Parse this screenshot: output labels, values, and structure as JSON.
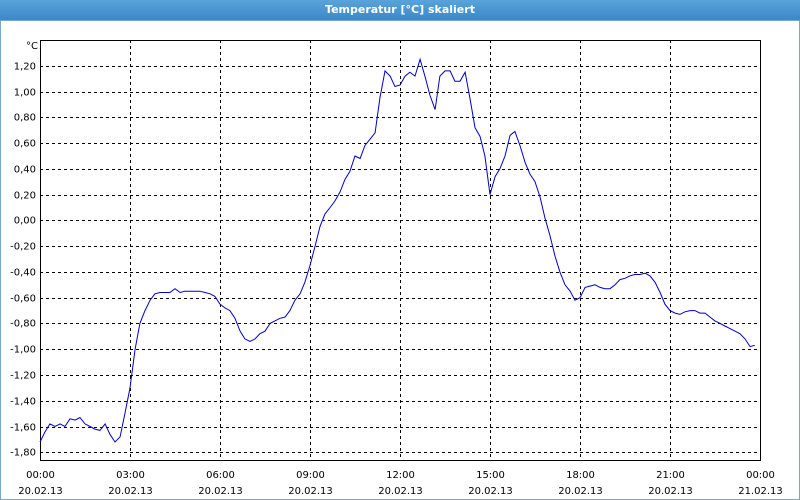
{
  "window_title": "Temperatur [°C] skaliert",
  "chart_data": {
    "type": "line",
    "y_unit": "°C",
    "xlim": [
      0,
      24
    ],
    "xticks": [
      {
        "value": 0,
        "label": "00:00"
      },
      {
        "value": 3,
        "label": "03:00"
      },
      {
        "value": 6,
        "label": "06:00"
      },
      {
        "value": 9,
        "label": "09:00"
      },
      {
        "value": 12,
        "label": "12:00"
      },
      {
        "value": 15,
        "label": "15:00"
      },
      {
        "value": 18,
        "label": "18:00"
      },
      {
        "value": 21,
        "label": "21:00"
      },
      {
        "value": 24,
        "label": "00:00"
      }
    ],
    "xtick_dates": [
      "20.02.13",
      "20.02.13",
      "20.02.13",
      "20.02.13",
      "20.02.13",
      "20.02.13",
      "20.02.13",
      "20.02.13",
      "21.02.13"
    ],
    "ylim": [
      -1.86,
      1.4
    ],
    "yticks": [
      {
        "value": -1.8,
        "label": "-1,80"
      },
      {
        "value": -1.6,
        "label": "-1,60"
      },
      {
        "value": -1.4,
        "label": "-1,40"
      },
      {
        "value": -1.2,
        "label": "-1,20"
      },
      {
        "value": -1.0,
        "label": "-1,00"
      },
      {
        "value": -0.8,
        "label": "-0,80"
      },
      {
        "value": -0.6,
        "label": "-0,60"
      },
      {
        "value": -0.4,
        "label": "-0,40"
      },
      {
        "value": -0.2,
        "label": "-0,20"
      },
      {
        "value": 0,
        "label": "0,00"
      },
      {
        "value": 0.2,
        "label": "0,20"
      },
      {
        "value": 0.4,
        "label": "0,40"
      },
      {
        "value": 0.6,
        "label": "0,60"
      },
      {
        "value": 0.8,
        "label": "0,80"
      },
      {
        "value": 1.0,
        "label": "1,00"
      },
      {
        "value": 1.2,
        "label": "1,20"
      }
    ],
    "grid": true,
    "series": [
      {
        "color": "#0000c8",
        "x": [
          0,
          0.17,
          0.33,
          0.5,
          0.67,
          0.83,
          1,
          1.17,
          1.33,
          1.5,
          1.67,
          1.83,
          2,
          2.17,
          2.33,
          2.5,
          2.67,
          2.83,
          3,
          3.17,
          3.33,
          3.5,
          3.67,
          3.83,
          4,
          4.17,
          4.33,
          4.5,
          4.67,
          4.83,
          5,
          5.17,
          5.33,
          5.5,
          5.67,
          5.83,
          6,
          6.17,
          6.33,
          6.5,
          6.67,
          6.83,
          7,
          7.17,
          7.33,
          7.5,
          7.67,
          7.83,
          8,
          8.17,
          8.33,
          8.5,
          8.67,
          8.83,
          9,
          9.17,
          9.33,
          9.5,
          9.67,
          9.83,
          10,
          10.17,
          10.33,
          10.5,
          10.67,
          10.83,
          11,
          11.17,
          11.33,
          11.5,
          11.67,
          11.83,
          12,
          12.17,
          12.33,
          12.5,
          12.67,
          12.83,
          13,
          13.17,
          13.33,
          13.5,
          13.67,
          13.83,
          14,
          14.17,
          14.33,
          14.5,
          14.67,
          14.83,
          15,
          15.17,
          15.33,
          15.5,
          15.67,
          15.83,
          16,
          16.17,
          16.33,
          16.5,
          16.67,
          16.83,
          17,
          17.17,
          17.33,
          17.5,
          17.67,
          17.83,
          18,
          18.17,
          18.33,
          18.5,
          18.67,
          18.83,
          19,
          19.17,
          19.33,
          19.5,
          19.67,
          19.83,
          20,
          20.17,
          20.33,
          20.5,
          20.67,
          20.83,
          21,
          21.17,
          21.33,
          21.5,
          21.67,
          21.83,
          22,
          22.17,
          22.33,
          22.5,
          22.67,
          22.83,
          23,
          23.17,
          23.33,
          23.5,
          23.67,
          23.83
        ],
        "values": [
          -1.72,
          -1.64,
          -1.58,
          -1.6,
          -1.58,
          -1.6,
          -1.54,
          -1.55,
          -1.53,
          -1.58,
          -1.6,
          -1.62,
          -1.63,
          -1.58,
          -1.66,
          -1.72,
          -1.68,
          -1.5,
          -1.3,
          -1.0,
          -0.8,
          -0.7,
          -0.62,
          -0.57,
          -0.56,
          -0.56,
          -0.56,
          -0.53,
          -0.56,
          -0.55,
          -0.55,
          -0.55,
          -0.55,
          -0.56,
          -0.57,
          -0.59,
          -0.65,
          -0.68,
          -0.7,
          -0.76,
          -0.86,
          -0.92,
          -0.94,
          -0.92,
          -0.88,
          -0.86,
          -0.8,
          -0.78,
          -0.76,
          -0.75,
          -0.7,
          -0.62,
          -0.57,
          -0.48,
          -0.35,
          -0.2,
          -0.05,
          0.05,
          0.1,
          0.15,
          0.22,
          0.32,
          0.38,
          0.5,
          0.48,
          0.58,
          0.63,
          0.68,
          0.95,
          1.16,
          1.12,
          1.04,
          1.05,
          1.12,
          1.15,
          1.12,
          1.25,
          1.12,
          0.97,
          0.86,
          1.12,
          1.16,
          1.16,
          1.08,
          1.08,
          1.15,
          0.95,
          0.72,
          0.65,
          0.5,
          0.2,
          0.34,
          0.4,
          0.5,
          0.66,
          0.69,
          0.58,
          0.45,
          0.36,
          0.3,
          0.18,
          0.02,
          -0.12,
          -0.28,
          -0.4,
          -0.5,
          -0.55,
          -0.62,
          -0.6,
          -0.52,
          -0.51,
          -0.5,
          -0.52,
          -0.53,
          -0.53,
          -0.5,
          -0.46,
          -0.45,
          -0.43,
          -0.42,
          -0.42,
          -0.41,
          -0.43,
          -0.48,
          -0.56,
          -0.65,
          -0.7,
          -0.72,
          -0.73,
          -0.71,
          -0.7,
          -0.7,
          -0.72,
          -0.72,
          -0.75,
          -0.78,
          -0.8,
          -0.82,
          -0.84,
          -0.86,
          -0.88,
          -0.92,
          -0.98,
          -0.97
        ]
      }
    ]
  }
}
